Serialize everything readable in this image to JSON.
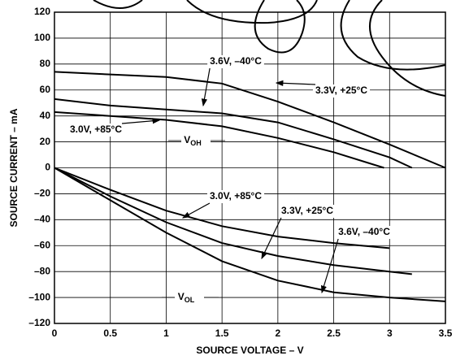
{
  "chart_data": {
    "type": "line",
    "x_label": "SOURCE VOLTAGE – V",
    "y_label": "SOURCE CURRENT – mA",
    "xlim": [
      0,
      3.5
    ],
    "ylim": [
      -120,
      120
    ],
    "xticks": [
      0,
      0.5,
      1,
      1.5,
      2,
      2.5,
      3,
      3.5
    ],
    "yticks": [
      {
        "value": -120,
        "label": "–120"
      },
      {
        "value": -100,
        "label": "–100"
      },
      {
        "value": -80,
        "label": "–80"
      },
      {
        "value": -60,
        "label": "–60"
      },
      {
        "value": -40,
        "label": "–40"
      },
      {
        "value": -20,
        "label": "–20"
      },
      0,
      20,
      40,
      60,
      80,
      100,
      120
    ],
    "grid": true,
    "color": "#000000",
    "series": [
      {
        "name": "3.6V, –40°C",
        "x": [
          0,
          0.5,
          1,
          1.5,
          2,
          2.5,
          3,
          3.5
        ],
        "values": [
          74,
          72,
          70,
          65,
          51,
          35,
          18,
          0
        ]
      },
      {
        "name": "3.3V, +25°C",
        "x": [
          0,
          0.5,
          1,
          1.5,
          2,
          2.5,
          3,
          3.2
        ],
        "values": [
          53,
          48,
          45,
          42,
          35,
          22,
          8,
          0
        ]
      },
      {
        "name": "3.0V, +85°C",
        "x": [
          0,
          0.5,
          1,
          1.5,
          2,
          2.5,
          2.95
        ],
        "values": [
          43,
          40,
          37,
          32,
          23,
          12,
          0
        ]
      },
      {
        "name": "3.0V, +85°C",
        "x": [
          0,
          0.5,
          1,
          1.5,
          2,
          2.5,
          3
        ],
        "values": [
          0,
          -17,
          -33,
          -45,
          -53,
          -58,
          -62
        ]
      },
      {
        "name": "3.3V, +25°C",
        "x": [
          0,
          0.5,
          1,
          1.5,
          2,
          2.5,
          3,
          3.2
        ],
        "values": [
          0,
          -22,
          -42,
          -58,
          -68,
          -75,
          -80,
          -82
        ]
      },
      {
        "name": "3.6V, –40°C",
        "x": [
          0,
          0.5,
          1,
          1.5,
          2,
          2.5,
          3,
          3.5
        ],
        "values": [
          0,
          -25,
          -50,
          -72,
          -87,
          -96,
          -100,
          -103
        ]
      }
    ],
    "annotations": [
      {
        "text": "V",
        "sub": "OH"
      },
      {
        "text": "V",
        "sub": "OL"
      }
    ]
  }
}
